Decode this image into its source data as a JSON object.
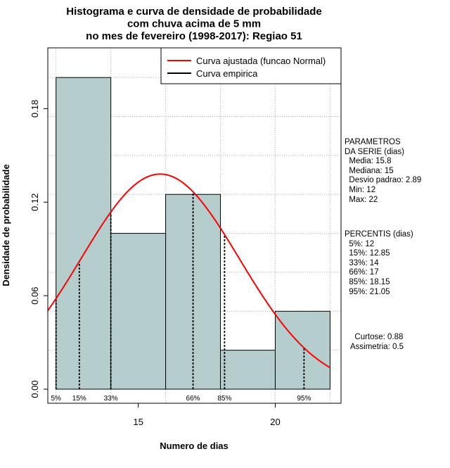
{
  "chart_data": {
    "type": "bar",
    "title_lines": [
      "Histograma e curva de densidade de probabilidade",
      "com chuva acima de 5 mm",
      "no mes de fevereiro (1998-2017): Regiao 51"
    ],
    "xlabel": "Numero de dias",
    "ylabel": "Densidade de probabilidade",
    "xlim": [
      11.7,
      22.4
    ],
    "ylim": [
      0,
      0.21
    ],
    "x_ticks": [
      15,
      20
    ],
    "y_ticks": [
      "0.00",
      "0.06",
      "0.12",
      "0.18"
    ],
    "grid": true,
    "bins": [
      {
        "start": 12,
        "end": 14,
        "density": 0.2
      },
      {
        "start": 14,
        "end": 16,
        "density": 0.1
      },
      {
        "start": 16,
        "end": 18,
        "density": 0.125
      },
      {
        "start": 18,
        "end": 20,
        "density": 0.025
      },
      {
        "start": 20,
        "end": 22,
        "density": 0.05
      }
    ],
    "normal_curve": {
      "mean": 15.8,
      "sd": 2.89,
      "x_from": 11.7,
      "x_to": 22
    },
    "percentile_lines": [
      {
        "label": "5%",
        "x": 12
      },
      {
        "label": "15%",
        "x": 12.85
      },
      {
        "label": "33%",
        "x": 14
      },
      {
        "label": "66%",
        "x": 17
      },
      {
        "label": "85%",
        "x": 18.15
      },
      {
        "label": "95%",
        "x": 21.05
      }
    ],
    "legend": {
      "position": "top-right",
      "entries": [
        {
          "label": "Curva ajustada (funcao Normal)",
          "color": "#ff0000"
        },
        {
          "label": "Curva empirica",
          "color": "#000000"
        }
      ]
    },
    "colors": {
      "bar_fill": "#b5cdcd",
      "curve": "#ff0000",
      "grid": "#b0b0b0"
    }
  },
  "sidebar": {
    "params_lines": [
      "PARAMETROS",
      "DA SERIE (dias)",
      "  Media: 15.8",
      "  Mediana: 15",
      "  Desvio padrao: 2.89",
      "  Min: 12",
      "  Max: 22"
    ],
    "percentis_lines": [
      "PERCENTIS (dias)",
      "  5%: 12",
      "  15%: 12.85",
      "  33%: 14",
      "  66%: 17",
      "  85%: 18.15",
      "  95%: 21.05"
    ],
    "shape_lines": [
      "  Curtose: 0.88",
      "Assimetria: 0.5"
    ]
  }
}
